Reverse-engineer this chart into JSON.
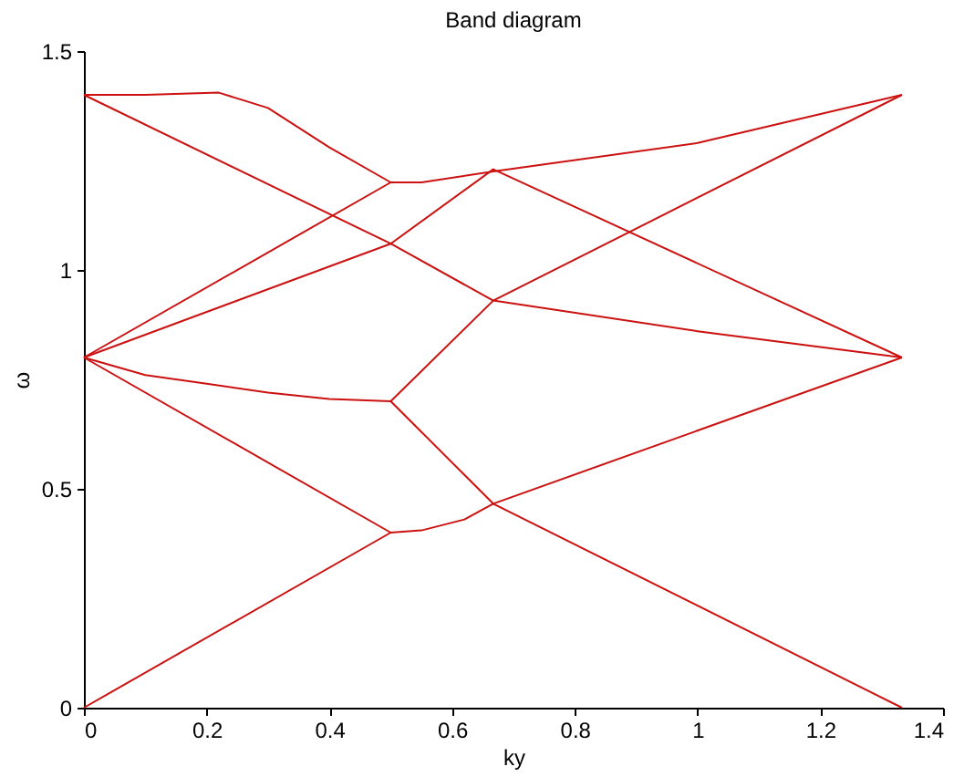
{
  "chart_data": {
    "type": "line",
    "title": "Band diagram",
    "xlabel": "ky",
    "ylabel": "ω",
    "xlim": [
      0,
      1.4
    ],
    "ylim": [
      0,
      1.5
    ],
    "xticks": [
      0,
      0.2,
      0.4,
      0.6,
      0.8,
      1,
      1.2,
      1.4
    ],
    "yticks": [
      0,
      0.5,
      1,
      1.5
    ],
    "grid": false,
    "marker": "none",
    "line_style": "solid",
    "series": [
      {
        "color": "#cc1111",
        "x": [
          0,
          0.5,
          0.55,
          0.62,
          0.667,
          1.333
        ],
        "values": [
          0,
          0.4,
          0.405,
          0.43,
          0.466,
          0.8
        ]
      },
      {
        "color": "#cc1111",
        "x": [
          0,
          0.5
        ],
        "values": [
          0.8,
          0.4
        ]
      },
      {
        "color": "#cc1111",
        "x": [
          0,
          0.1,
          0.2,
          0.3,
          0.4,
          0.5,
          0.667,
          1.333
        ],
        "values": [
          0.8,
          0.76,
          0.74,
          0.72,
          0.705,
          0.7,
          0.466,
          0
        ]
      },
      {
        "color": "#cc1111",
        "x": [
          0.5,
          0.667,
          1.333
        ],
        "values": [
          0.7,
          0.93,
          1.4
        ]
      },
      {
        "color": "#cc1111",
        "x": [
          0,
          0.5,
          0.667,
          1.0,
          1.333
        ],
        "values": [
          1.4,
          1.06,
          0.93,
          0.86,
          0.8
        ]
      },
      {
        "color": "#cc1111",
        "x": [
          0,
          0.5,
          0.667,
          1.333
        ],
        "values": [
          0.8,
          1.06,
          1.23,
          0.8
        ]
      },
      {
        "color": "#cc1111",
        "x": [
          0,
          0.5,
          0.55,
          0.667,
          1.0,
          1.333
        ],
        "values": [
          0.8,
          1.2,
          1.2,
          1.225,
          1.29,
          1.4
        ]
      },
      {
        "color": "#cc1111",
        "x": [
          0,
          0.1,
          0.22,
          0.3,
          0.4,
          0.5
        ],
        "values": [
          1.4,
          1.4,
          1.405,
          1.37,
          1.28,
          1.2
        ]
      }
    ]
  }
}
